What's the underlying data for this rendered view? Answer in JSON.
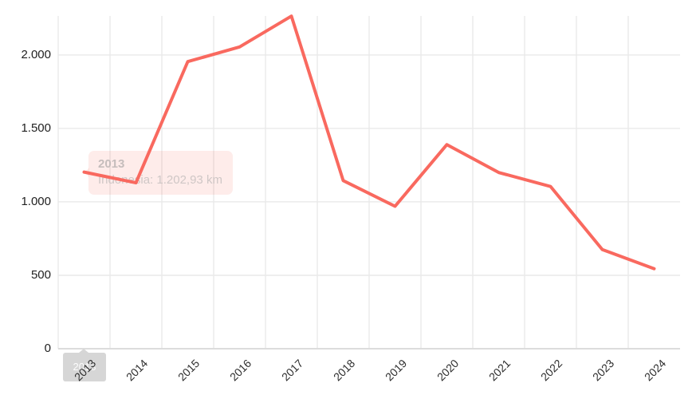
{
  "chart_data": {
    "type": "line",
    "title": "",
    "xlabel": "",
    "ylabel": "",
    "categories": [
      "2013",
      "2014",
      "2015",
      "2016",
      "2017",
      "2018",
      "2019",
      "2020",
      "2021",
      "2022",
      "2023",
      "2024"
    ],
    "series": [
      {
        "name": "Indonesia",
        "values": [
          1202.93,
          1130,
          1955,
          2055,
          2265,
          1145,
          970,
          1390,
          1200,
          1105,
          675,
          545
        ]
      }
    ],
    "ylim": [
      0,
      2266
    ],
    "yticks": [
      0,
      500,
      1000,
      1500,
      2000
    ],
    "ytick_labels": [
      "0",
      "500",
      "1.000",
      "1.500",
      "2.000"
    ],
    "grid": true,
    "legend": "none",
    "line_color": "#f9695f",
    "grid_color": "#e9e9e9",
    "axis_line_color": "#dcdcdc"
  },
  "tooltip": {
    "title": "2013",
    "body": "Indonesia: 1.202,93 km",
    "bg": "#faeceb",
    "title_color": "#c5bdbc",
    "body_color": "#cfc7c6"
  },
  "axis_tooltip": {
    "label": "2013",
    "bg": "#d6d6d6",
    "text_color": "#ffffff"
  }
}
